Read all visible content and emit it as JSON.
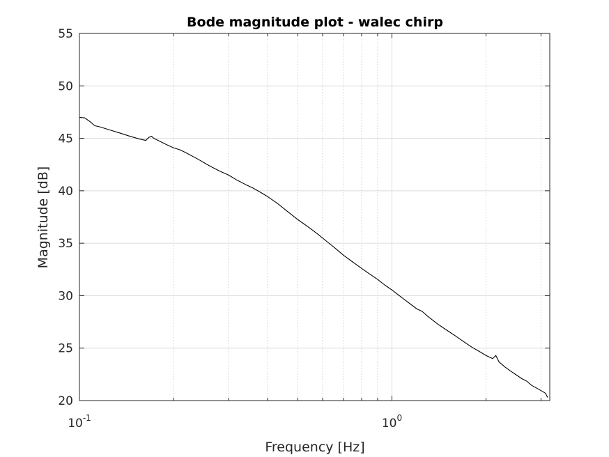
{
  "chart_data": {
    "type": "line",
    "title": "Bode magnitude plot - walec chirp",
    "xlabel": "Frequency [Hz]",
    "ylabel": "Magnitude [dB]",
    "xscale": "log",
    "xlim": [
      0.1,
      3.2
    ],
    "ylim": [
      20,
      55
    ],
    "grid": true,
    "x_ticks": [
      {
        "value": 0.1,
        "base": "10",
        "exp": "-1"
      },
      {
        "value": 1,
        "base": "10",
        "exp": "0"
      }
    ],
    "y_ticks": [
      20,
      25,
      30,
      35,
      40,
      45,
      50,
      55
    ],
    "series": [
      {
        "color": "#000000",
        "x": [
          0.1,
          0.104,
          0.108,
          0.112,
          0.116,
          0.125,
          0.135,
          0.145,
          0.155,
          0.163,
          0.167,
          0.17,
          0.173,
          0.18,
          0.19,
          0.2,
          0.21,
          0.22,
          0.24,
          0.26,
          0.28,
          0.3,
          0.32,
          0.34,
          0.36,
          0.38,
          0.4,
          0.43,
          0.46,
          0.5,
          0.54,
          0.58,
          0.62,
          0.66,
          0.7,
          0.75,
          0.8,
          0.85,
          0.9,
          0.95,
          1.0,
          1.1,
          1.2,
          1.25,
          1.3,
          1.4,
          1.5,
          1.6,
          1.7,
          1.8,
          1.9,
          2.0,
          2.1,
          2.15,
          2.2,
          2.3,
          2.4,
          2.5,
          2.6,
          2.7,
          2.8,
          2.9,
          3.0,
          3.1,
          3.15
        ],
        "y": [
          47.0,
          46.95,
          46.6,
          46.2,
          46.1,
          45.8,
          45.5,
          45.2,
          44.95,
          44.8,
          45.1,
          45.2,
          45.0,
          44.75,
          44.4,
          44.1,
          43.9,
          43.6,
          43.0,
          42.4,
          41.9,
          41.5,
          41.0,
          40.6,
          40.25,
          39.85,
          39.45,
          38.8,
          38.1,
          37.25,
          36.55,
          35.85,
          35.15,
          34.5,
          33.85,
          33.2,
          32.6,
          32.05,
          31.55,
          31.0,
          30.55,
          29.6,
          28.75,
          28.5,
          28.05,
          27.3,
          26.7,
          26.15,
          25.6,
          25.1,
          24.7,
          24.3,
          24.0,
          24.3,
          23.7,
          23.2,
          22.8,
          22.45,
          22.1,
          21.85,
          21.45,
          21.2,
          20.95,
          20.7,
          20.3
        ]
      }
    ]
  }
}
